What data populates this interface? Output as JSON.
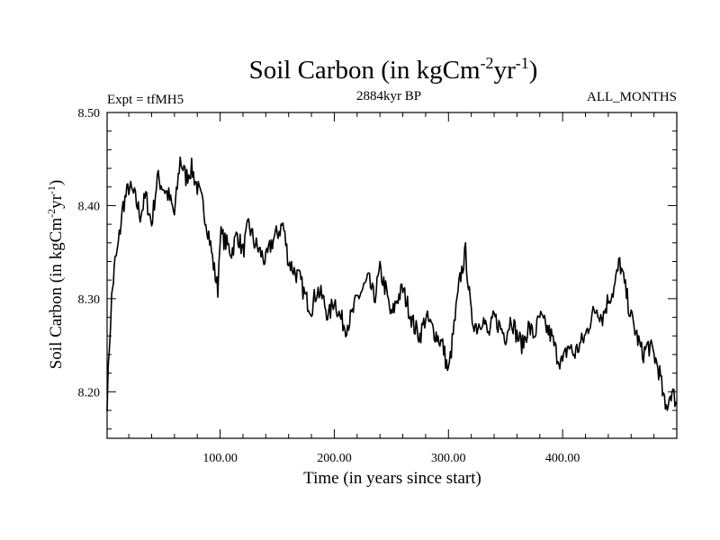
{
  "chart_data": {
    "type": "line",
    "title": "Soil Carbon (in kgCm",
    "title_sup1": "-2",
    "title_mid": "yr",
    "title_sup2": "-1",
    "title_end": ")",
    "subtitle_left": "Expt = tfMH5",
    "subtitle_center": "2884kyr BP",
    "subtitle_right": "ALL_MONTHS",
    "xlabel": "Time (in years since start)",
    "ylabel_main": "Soil Carbon (in kgCm",
    "ylabel_sup1": "-2",
    "ylabel_mid": "yr",
    "ylabel_sup2": "-1",
    "ylabel_end": ")",
    "xlim": [
      1,
      500
    ],
    "ylim": [
      8.15,
      8.5
    ],
    "x_ticks": [
      100,
      200,
      300,
      400
    ],
    "x_tick_labels": [
      "100.00",
      "200.00",
      "300.00",
      "400.00"
    ],
    "y_ticks": [
      8.2,
      8.3,
      8.4,
      8.5
    ],
    "y_tick_labels": [
      "8.20",
      "8.30",
      "8.40",
      "8.50"
    ],
    "series": [
      {
        "name": "Soil Carbon",
        "x": [
          1,
          3,
          5,
          8,
          10,
          15,
          20,
          25,
          30,
          35,
          40,
          45,
          50,
          55,
          60,
          65,
          70,
          75,
          80,
          85,
          90,
          95,
          98,
          100,
          105,
          110,
          115,
          120,
          125,
          130,
          135,
          140,
          145,
          150,
          155,
          160,
          165,
          170,
          175,
          180,
          185,
          190,
          195,
          200,
          205,
          210,
          215,
          220,
          225,
          230,
          235,
          240,
          245,
          250,
          255,
          260,
          265,
          270,
          275,
          280,
          285,
          290,
          295,
          300,
          305,
          310,
          315,
          320,
          325,
          330,
          335,
          340,
          345,
          350,
          355,
          360,
          365,
          370,
          375,
          380,
          385,
          390,
          395,
          400,
          405,
          410,
          415,
          420,
          425,
          430,
          435,
          440,
          445,
          450,
          455,
          460,
          465,
          470,
          475,
          480,
          485,
          490,
          495,
          500
        ],
        "y": [
          8.19,
          8.25,
          8.3,
          8.34,
          8.35,
          8.4,
          8.42,
          8.41,
          8.39,
          8.41,
          8.38,
          8.43,
          8.42,
          8.41,
          8.39,
          8.45,
          8.43,
          8.44,
          8.42,
          8.4,
          8.37,
          8.33,
          8.31,
          8.37,
          8.36,
          8.35,
          8.37,
          8.35,
          8.38,
          8.36,
          8.35,
          8.34,
          8.36,
          8.37,
          8.38,
          8.34,
          8.33,
          8.32,
          8.3,
          8.29,
          8.31,
          8.3,
          8.28,
          8.3,
          8.28,
          8.27,
          8.28,
          8.3,
          8.31,
          8.32,
          8.3,
          8.33,
          8.31,
          8.28,
          8.3,
          8.31,
          8.29,
          8.27,
          8.26,
          8.28,
          8.27,
          8.26,
          8.25,
          8.22,
          8.27,
          8.32,
          8.35,
          8.28,
          8.27,
          8.28,
          8.26,
          8.28,
          8.27,
          8.26,
          8.28,
          8.26,
          8.25,
          8.27,
          8.26,
          8.28,
          8.27,
          8.26,
          8.24,
          8.23,
          8.25,
          8.24,
          8.25,
          8.26,
          8.28,
          8.29,
          8.28,
          8.3,
          8.31,
          8.34,
          8.31,
          8.28,
          8.26,
          8.24,
          8.25,
          8.24,
          8.22,
          8.18,
          8.2,
          8.19
        ]
      }
    ]
  }
}
